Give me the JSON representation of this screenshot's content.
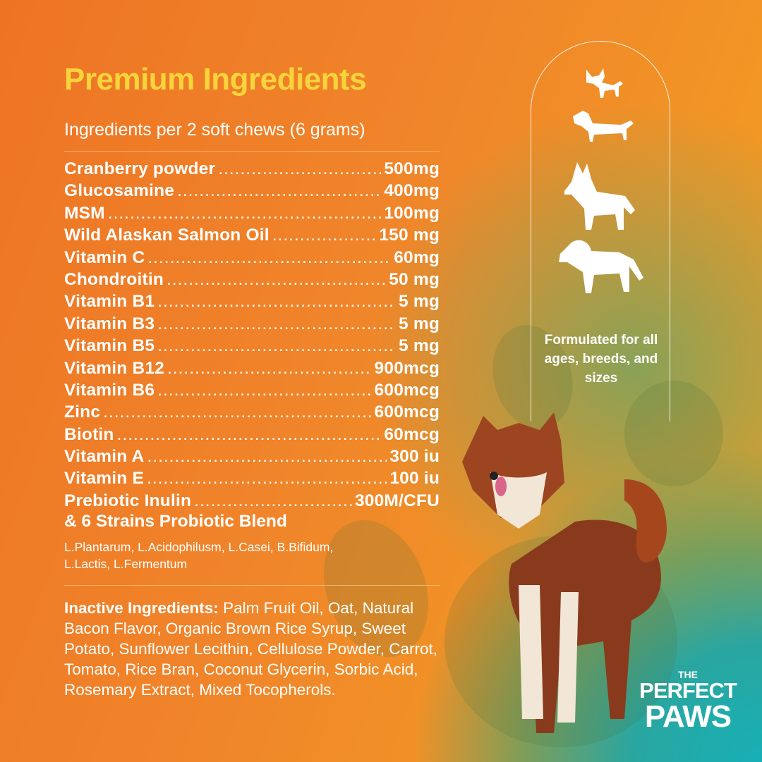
{
  "title": "Premium Ingredients",
  "subtitle": "Ingredients per 2 soft chews (6 grams)",
  "ingredients": [
    {
      "name": "Cranberry powder",
      "amount": "500mg"
    },
    {
      "name": "Glucosamine",
      "amount": "400mg"
    },
    {
      "name": "MSM",
      "amount": "100mg"
    },
    {
      "name": "Wild Alaskan Salmon Oil",
      "amount": "150 mg"
    },
    {
      "name": "Vitamin C",
      "amount": "60mg"
    },
    {
      "name": "Chondroitin",
      "amount": "50 mg"
    },
    {
      "name": "Vitamin B1",
      "amount": "5 mg"
    },
    {
      "name": "Vitamin B3",
      "amount": "5 mg"
    },
    {
      "name": "Vitamin B5",
      "amount": "5 mg"
    },
    {
      "name": "Vitamin B12",
      "amount": "900mcg"
    },
    {
      "name": "Vitamin B6",
      "amount": "600mcg"
    },
    {
      "name": "Zinc",
      "amount": "600mcg"
    },
    {
      "name": "Biotin",
      "amount": "60mcg"
    },
    {
      "name": "Vitamin A",
      "amount": "300 iu"
    },
    {
      "name": "Vitamin E",
      "amount": "100 iu"
    },
    {
      "name": "Prebiotic Inulin",
      "amount": "300M/CFU"
    }
  ],
  "probiotic_blend": "& 6 Strains Probiotic Blend",
  "strains": "L.Plantarum, L.Acidophilusm, L.Casei, B.Bifidum, L.Lactis, L.Fermentum",
  "inactive": {
    "label": "Inactive Ingredients:",
    "text": " Palm Fruit Oil, Oat, Natural Bacon Flavor, Organic Brown Rice Syrup, Sweet Potato, Sunflower Lecithin, Cellulose Powder, Carrot, Tomato, Rice Bran, Coconut Glycerin, Sorbic Acid, Rosemary Extract, Mixed Tocopherols."
  },
  "badge": {
    "text": "Formulated for all ages, breeds, and sizes",
    "icons": [
      "small-dog-icon",
      "dachshund-icon",
      "husky-icon",
      "large-dog-icon"
    ]
  },
  "logo": {
    "the": "THE",
    "perfect": "PERFECT",
    "paws": "PAWS"
  },
  "colors": {
    "title": "#f7d43c",
    "orange": "#ee7424",
    "teal": "#17b0b6"
  }
}
